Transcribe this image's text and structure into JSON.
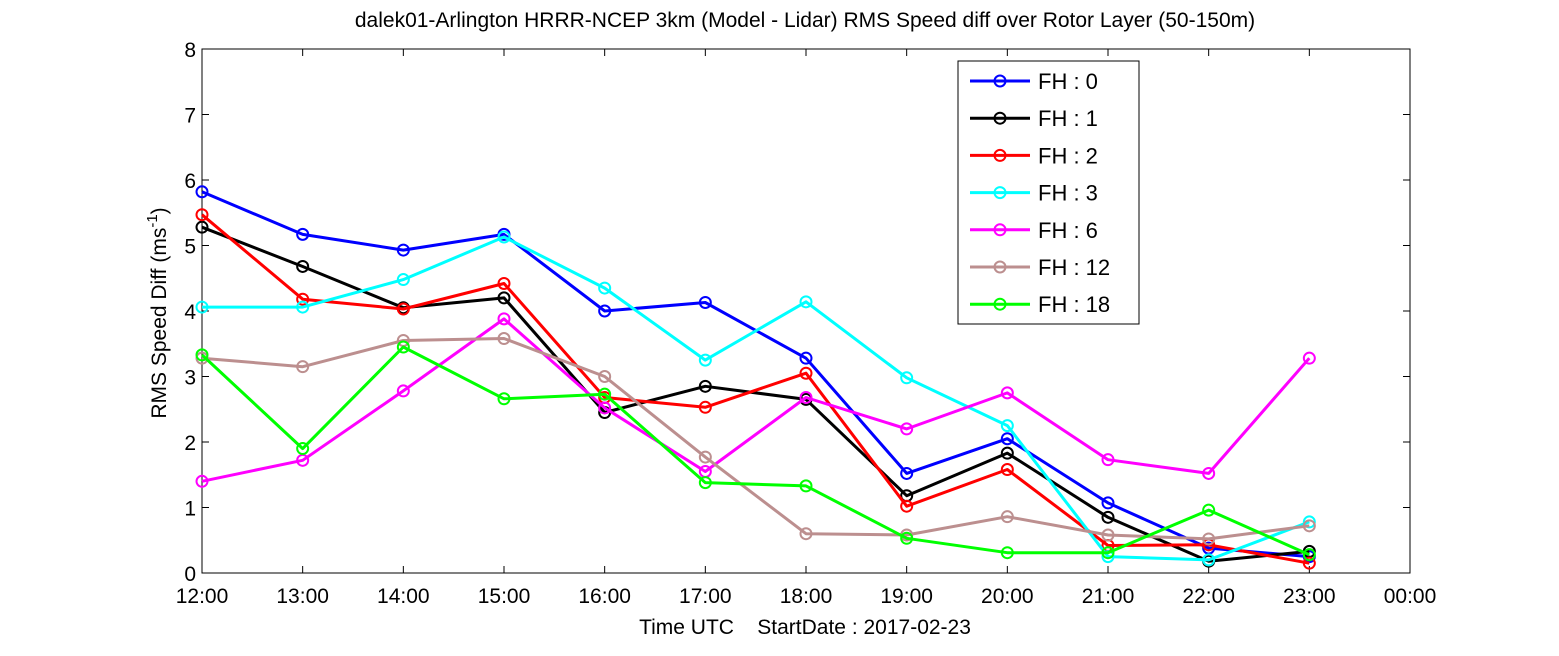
{
  "chart_data": {
    "type": "line",
    "title": "dalek01-Arlington HRRR-NCEP 3km (Model - Lidar) RMS Speed diff over Rotor Layer (50-150m)",
    "xlabel": "Time UTC    StartDate : 2017-02-23",
    "ylabel": "RMS Speed Diff (ms",
    "ylabel_sup": "-1",
    "ylabel_end": ")",
    "x_ticks": [
      "12:00",
      "13:00",
      "14:00",
      "15:00",
      "16:00",
      "17:00",
      "18:00",
      "19:00",
      "20:00",
      "21:00",
      "22:00",
      "23:00",
      "00:00"
    ],
    "y_ticks": [
      "0",
      "1",
      "2",
      "3",
      "4",
      "5",
      "6",
      "7",
      "8"
    ],
    "xlim": [
      0,
      12
    ],
    "ylim": [
      0,
      8
    ],
    "grid": false,
    "legend_position": "top-right",
    "series": [
      {
        "name": "FH : 0",
        "color": "#0000ff",
        "values": [
          5.82,
          5.17,
          4.93,
          5.17,
          4.0,
          4.13,
          3.28,
          1.52,
          2.05,
          1.07,
          0.38,
          0.25
        ]
      },
      {
        "name": "FH : 1",
        "color": "#000000",
        "values": [
          5.28,
          4.68,
          4.05,
          4.2,
          2.45,
          2.85,
          2.65,
          1.18,
          1.83,
          0.85,
          0.18,
          0.33
        ]
      },
      {
        "name": "FH : 2",
        "color": "#ff0000",
        "values": [
          5.47,
          4.18,
          4.03,
          4.42,
          2.68,
          2.53,
          3.05,
          1.02,
          1.58,
          0.42,
          0.43,
          0.15
        ]
      },
      {
        "name": "FH : 3",
        "color": "#00ffff",
        "values": [
          4.06,
          4.06,
          4.48,
          5.13,
          4.35,
          3.25,
          4.14,
          2.98,
          2.25,
          0.25,
          0.2,
          0.78
        ]
      },
      {
        "name": "FH : 6",
        "color": "#ff00ff",
        "values": [
          1.4,
          1.72,
          2.78,
          3.88,
          2.52,
          1.55,
          2.68,
          2.2,
          2.75,
          1.73,
          1.52,
          3.28
        ]
      },
      {
        "name": "FH : 12",
        "color": "#bc8f8f",
        "values": [
          3.28,
          3.15,
          3.55,
          3.58,
          3.0,
          1.77,
          0.6,
          0.58,
          0.86,
          0.58,
          0.52,
          0.72
        ]
      },
      {
        "name": "FH : 18",
        "color": "#00ff00",
        "values": [
          3.33,
          1.9,
          3.45,
          2.66,
          2.73,
          1.38,
          1.33,
          0.53,
          0.31,
          0.31,
          0.96,
          0.28
        ]
      }
    ]
  }
}
